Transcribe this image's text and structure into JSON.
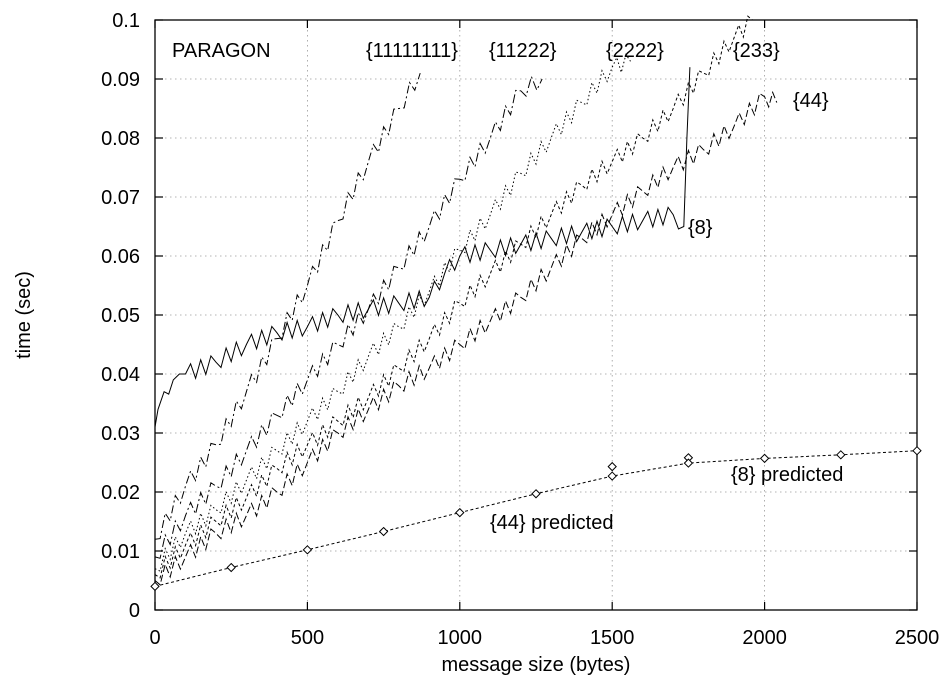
{
  "chart_data": {
    "type": "line",
    "title": "",
    "xlabel": "message size (bytes)",
    "ylabel": "time (sec)",
    "xlim": [
      0,
      2500
    ],
    "ylim": [
      0,
      0.1
    ],
    "grid": true,
    "x_ticks": [
      0,
      500,
      1000,
      1500,
      2000,
      2500
    ],
    "y_ticks": [
      0,
      0.01,
      0.02,
      0.03,
      0.04,
      0.05,
      0.06,
      0.07,
      0.08,
      0.09,
      0.1
    ],
    "x_tick_labels": [
      "0",
      "500",
      "1000",
      "1500",
      "2000",
      "2500"
    ],
    "y_tick_labels": [
      "0",
      "0.01",
      "0.02",
      "0.03",
      "0.04",
      "0.05",
      "0.06",
      "0.07",
      "0.08",
      "0.09",
      "0.1"
    ],
    "annotations": [
      "PARAGON",
      "{11111111}",
      "{11222}",
      "{2222}",
      "{233}",
      "{44}",
      "{8}",
      "{8} predicted",
      "{44} predicted"
    ],
    "series": [
      {
        "name": "{11111111}",
        "dash": "8 3 2 3",
        "x": [
          0,
          100,
          200,
          300,
          400,
          500,
          600,
          700,
          800,
          870
        ],
        "y": [
          0.012,
          0.021,
          0.028,
          0.037,
          0.046,
          0.055,
          0.066,
          0.076,
          0.085,
          0.091
        ]
      },
      {
        "name": "{11222}",
        "dash": "9 3 2 3",
        "x": [
          0,
          100,
          200,
          300,
          400,
          500,
          600,
          700,
          800,
          900,
          1000,
          1100,
          1200,
          1270
        ],
        "y": [
          0.009,
          0.016,
          0.021,
          0.027,
          0.033,
          0.039,
          0.045,
          0.051,
          0.058,
          0.065,
          0.073,
          0.08,
          0.088,
          0.09
        ]
      },
      {
        "name": "{2222}",
        "dash": "1.5 2.5",
        "x": [
          0,
          100,
          200,
          300,
          400,
          500,
          600,
          700,
          800,
          900,
          1000,
          1100,
          1200,
          1300,
          1400,
          1500,
          1560
        ],
        "y": [
          0.007,
          0.013,
          0.017,
          0.022,
          0.027,
          0.032,
          0.037,
          0.043,
          0.048,
          0.054,
          0.061,
          0.067,
          0.074,
          0.08,
          0.086,
          0.092,
          0.093
        ]
      },
      {
        "name": "{233}",
        "dash": "3 2.5",
        "x": [
          0,
          100,
          200,
          300,
          400,
          500,
          600,
          700,
          800,
          900,
          1000,
          1100,
          1200,
          1300,
          1400,
          1500,
          1600,
          1700,
          1800,
          1900,
          1960
        ],
        "y": [
          0.006,
          0.011,
          0.015,
          0.019,
          0.024,
          0.028,
          0.032,
          0.036,
          0.041,
          0.046,
          0.052,
          0.057,
          0.062,
          0.067,
          0.072,
          0.076,
          0.08,
          0.085,
          0.091,
          0.097,
          0.1
        ]
      },
      {
        "name": "{44}",
        "dash": "7 3",
        "x": [
          0,
          100,
          200,
          300,
          400,
          500,
          600,
          700,
          800,
          900,
          1000,
          1100,
          1200,
          1300,
          1400,
          1500,
          1600,
          1700,
          1800,
          1900,
          2000,
          2040
        ],
        "y": [
          0.005,
          0.009,
          0.013,
          0.016,
          0.02,
          0.025,
          0.03,
          0.034,
          0.038,
          0.041,
          0.045,
          0.049,
          0.053,
          0.058,
          0.063,
          0.067,
          0.071,
          0.075,
          0.078,
          0.082,
          0.087,
          0.086
        ]
      },
      {
        "name": "{8}",
        "dash": "",
        "x": [
          0,
          10,
          30,
          60,
          80,
          100,
          200,
          300,
          400,
          500,
          600,
          700,
          800,
          900,
          950,
          1000,
          1100,
          1200,
          1300,
          1400,
          1500,
          1600,
          1700,
          1735,
          1745,
          1755
        ],
        "y": [
          0.031,
          0.034,
          0.037,
          0.039,
          0.04,
          0.04,
          0.042,
          0.045,
          0.047,
          0.048,
          0.05,
          0.051,
          0.052,
          0.053,
          0.057,
          0.06,
          0.061,
          0.062,
          0.063,
          0.064,
          0.065,
          0.066,
          0.067,
          0.065,
          0.08,
          0.092
        ]
      },
      {
        "name": "{8} predicted",
        "dash": "",
        "markers": true,
        "x": [
          1500,
          1750,
          2000,
          2250,
          2500
        ],
        "y": [
          0.0243,
          0.0258,
          0.0257,
          0.0263,
          0.027
        ]
      },
      {
        "name": "{44} predicted",
        "dash": "",
        "markers": true,
        "x": [
          0,
          250,
          500,
          750,
          1000,
          1250,
          1500,
          1750
        ],
        "y": [
          0.004,
          0.0072,
          0.0102,
          0.0133,
          0.0165,
          0.0197,
          0.0227,
          0.0249
        ]
      }
    ],
    "predicted_fit_line": {
      "dash": "3 2.5",
      "x": [
        0,
        250,
        500,
        750,
        1000,
        1250,
        1500,
        1750,
        2000,
        2250,
        2500
      ],
      "y": [
        0.004,
        0.0072,
        0.0102,
        0.0133,
        0.0165,
        0.0197,
        0.0227,
        0.0249,
        0.0257,
        0.0263,
        0.027
      ]
    }
  }
}
